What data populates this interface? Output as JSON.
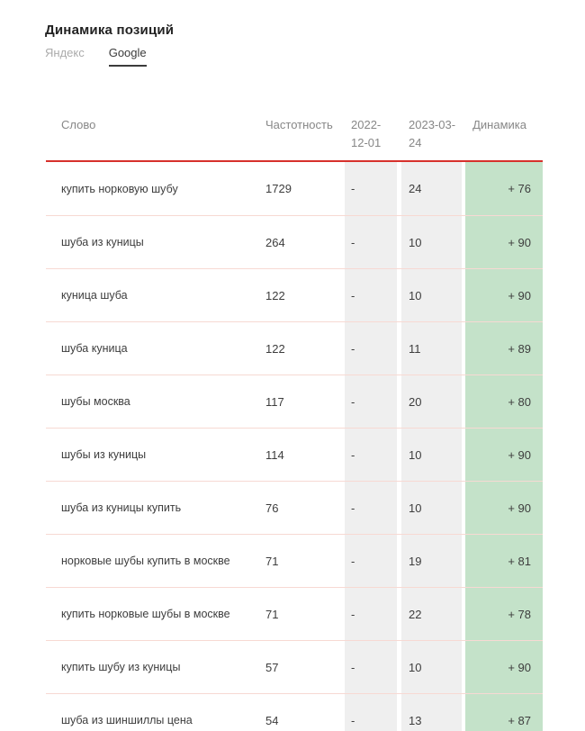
{
  "page": {
    "title": "Динамика позиций"
  },
  "tabs": [
    {
      "id": "yandex",
      "label": "Яндекс",
      "active": false
    },
    {
      "id": "google",
      "label": "Google",
      "active": true
    }
  ],
  "colors": {
    "header_rule_red": "#d7312c",
    "row_separator_pink": "#f7d9d3",
    "date_column_gray": "#efefef",
    "dynamics_column_green": "#c4e2c9",
    "active_tab": "#3b3b3b",
    "inactive_tab": "#ababab",
    "header_text": "#878787",
    "body_text": "#3d3d3d"
  },
  "table": {
    "columns": [
      "Слово",
      "Частотность",
      "2022-12-01",
      "2023-03-24",
      "Динамика"
    ],
    "rows": [
      {
        "keyword": "купить норковую шубу",
        "frequency": "1729",
        "date1": "-",
        "date2": "24",
        "dynamics": "+ 76"
      },
      {
        "keyword": "шуба из куницы",
        "frequency": "264",
        "date1": "-",
        "date2": "10",
        "dynamics": "+ 90"
      },
      {
        "keyword": "куница шуба",
        "frequency": "122",
        "date1": "-",
        "date2": "10",
        "dynamics": "+ 90"
      },
      {
        "keyword": "шуба куница",
        "frequency": "122",
        "date1": "-",
        "date2": "11",
        "dynamics": "+ 89"
      },
      {
        "keyword": "шубы москва",
        "frequency": "117",
        "date1": "-",
        "date2": "20",
        "dynamics": "+ 80"
      },
      {
        "keyword": "шубы из куницы",
        "frequency": "114",
        "date1": "-",
        "date2": "10",
        "dynamics": "+ 90"
      },
      {
        "keyword": "шуба из куницы купить",
        "frequency": "76",
        "date1": "-",
        "date2": "10",
        "dynamics": "+ 90"
      },
      {
        "keyword": "норковые шубы купить в москве",
        "frequency": "71",
        "date1": "-",
        "date2": "19",
        "dynamics": "+ 81"
      },
      {
        "keyword": "купить норковые шубы в москве",
        "frequency": "71",
        "date1": "-",
        "date2": "22",
        "dynamics": "+ 78"
      },
      {
        "keyword": "купить шубу из куницы",
        "frequency": "57",
        "date1": "-",
        "date2": "10",
        "dynamics": "+ 90"
      },
      {
        "keyword": "шуба из шиншиллы цена",
        "frequency": "54",
        "date1": "-",
        "date2": "13",
        "dynamics": "+ 87"
      }
    ]
  }
}
